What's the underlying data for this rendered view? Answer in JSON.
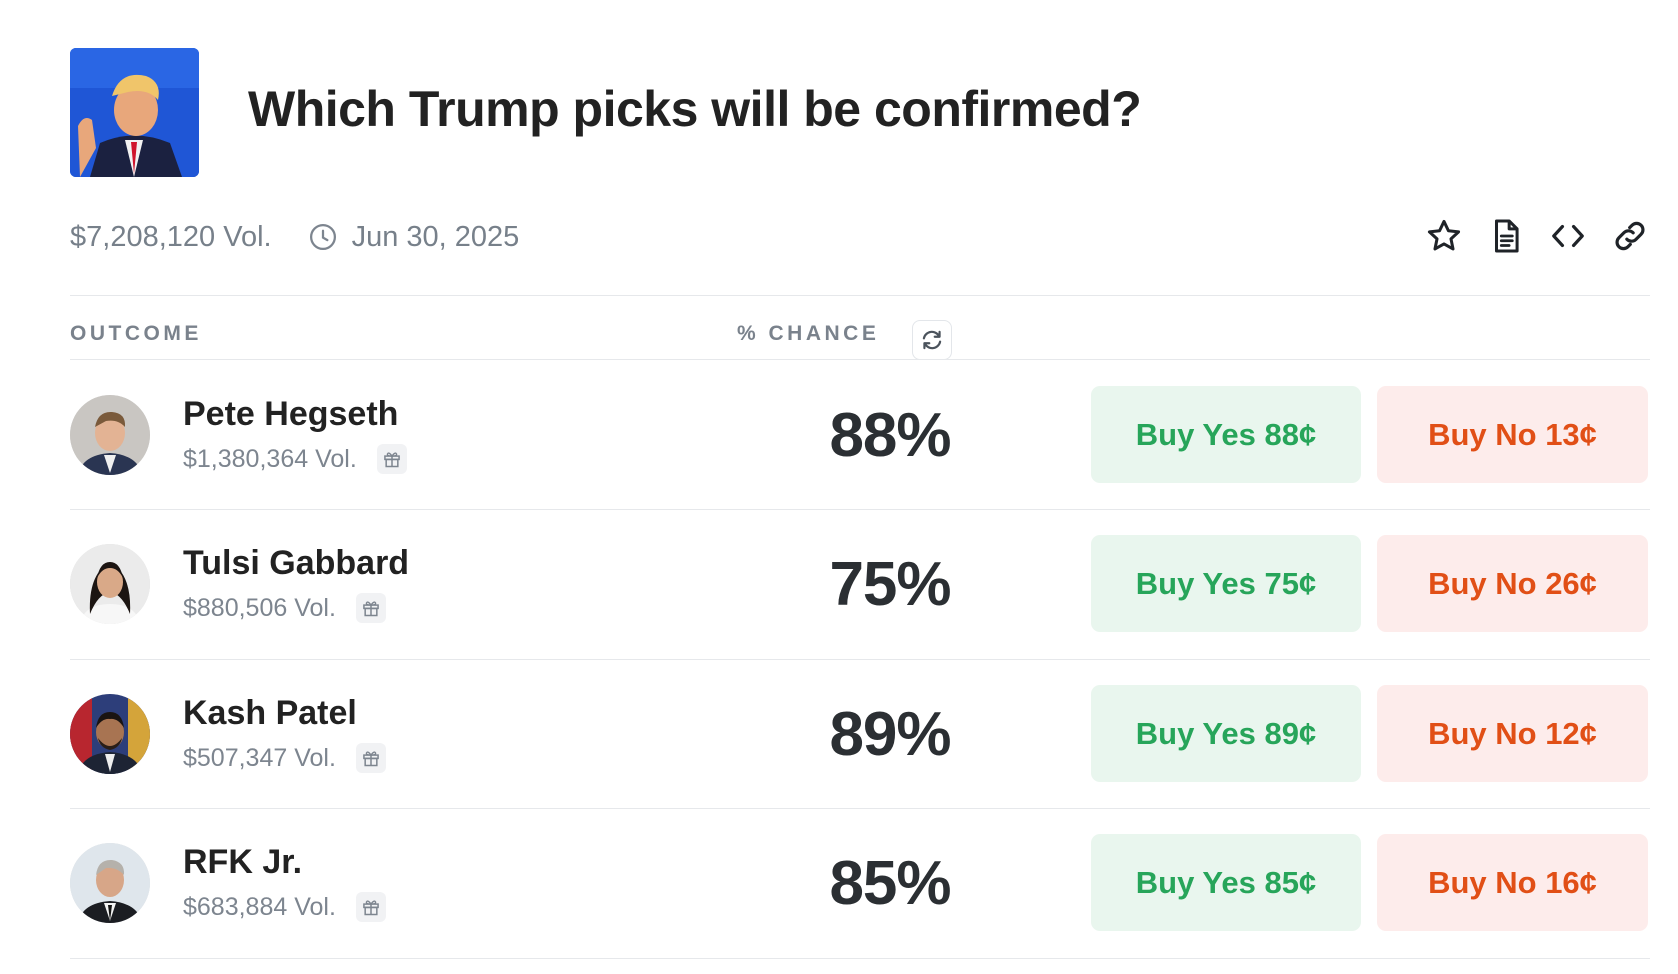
{
  "market": {
    "title": "Which Trump picks will be confirmed?",
    "volume": "$7,208,120 Vol.",
    "end_date": "Jun 30, 2025"
  },
  "icons": {
    "clock": "clock-icon",
    "star": "star-icon",
    "document": "document-icon",
    "embed": "code-icon",
    "link": "link-icon",
    "refresh": "refresh-icon",
    "gift": "gift-icon"
  },
  "table": {
    "outcome_header": "OUTCOME",
    "chance_header": "% CHANCE"
  },
  "outcomes": [
    {
      "name": "Pete Hegseth",
      "volume": "$1,380,364 Vol.",
      "chance": "88%",
      "buy_yes": "Buy Yes 88¢",
      "buy_no": "Buy No 13¢"
    },
    {
      "name": "Tulsi Gabbard",
      "volume": "$880,506 Vol.",
      "chance": "75%",
      "buy_yes": "Buy Yes 75¢",
      "buy_no": "Buy No 26¢"
    },
    {
      "name": "Kash Patel",
      "volume": "$507,347 Vol.",
      "chance": "89%",
      "buy_yes": "Buy Yes 89¢",
      "buy_no": "Buy No 12¢"
    },
    {
      "name": "RFK Jr.",
      "volume": "$683,884 Vol.",
      "chance": "85%",
      "buy_yes": "Buy Yes 85¢",
      "buy_no": "Buy No 16¢"
    }
  ],
  "colors": {
    "yes_text": "#27a55a",
    "yes_bg": "#e9f6ee",
    "no_text": "#e14f16",
    "no_bg": "#fdeceb"
  }
}
